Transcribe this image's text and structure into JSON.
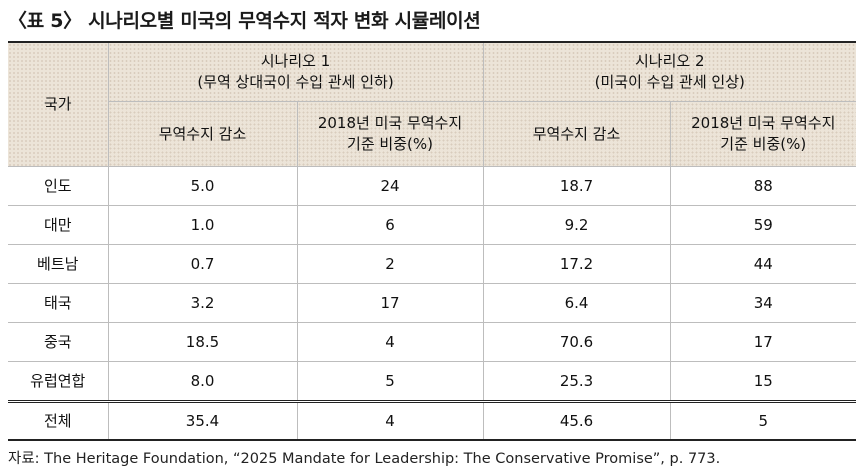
{
  "title": "〈표 5〉 시나리오별 미국의 무역수지 적자 변화 시뮬레이션",
  "table": {
    "country_header": "국가",
    "scenario1": {
      "label": "시나리오 1",
      "desc": "(무역 상대국이 수입 관세 인하)",
      "col1": "무역수지 감소",
      "col2_line1": "2018년 미국 무역수지",
      "col2_line2": "기준 비중(%)"
    },
    "scenario2": {
      "label": "시나리오 2",
      "desc": "(미국이 수입 관세 인상)",
      "col1": "무역수지 감소",
      "col2_line1": "2018년 미국 무역수지",
      "col2_line2": "기준 비중(%)"
    },
    "rows": [
      {
        "country": "인도",
        "s1_decrease": "5.0",
        "s1_share": "24",
        "s2_decrease": "18.7",
        "s2_share": "88"
      },
      {
        "country": "대만",
        "s1_decrease": "1.0",
        "s1_share": "6",
        "s2_decrease": "9.2",
        "s2_share": "59"
      },
      {
        "country": "베트남",
        "s1_decrease": "0.7",
        "s1_share": "2",
        "s2_decrease": "17.2",
        "s2_share": "44"
      },
      {
        "country": "태국",
        "s1_decrease": "3.2",
        "s1_share": "17",
        "s2_decrease": "6.4",
        "s2_share": "34"
      },
      {
        "country": "중국",
        "s1_decrease": "18.5",
        "s1_share": "4",
        "s2_decrease": "70.6",
        "s2_share": "17"
      },
      {
        "country": "유럽연합",
        "s1_decrease": "8.0",
        "s1_share": "5",
        "s2_decrease": "25.3",
        "s2_share": "15"
      }
    ],
    "total": {
      "country": "전체",
      "s1_decrease": "35.4",
      "s1_share": "4",
      "s2_decrease": "45.6",
      "s2_share": "5"
    }
  },
  "source": "자료: The Heritage Foundation, “2025 Mandate for Leadership: The Conservative Promise”, p. 773."
}
